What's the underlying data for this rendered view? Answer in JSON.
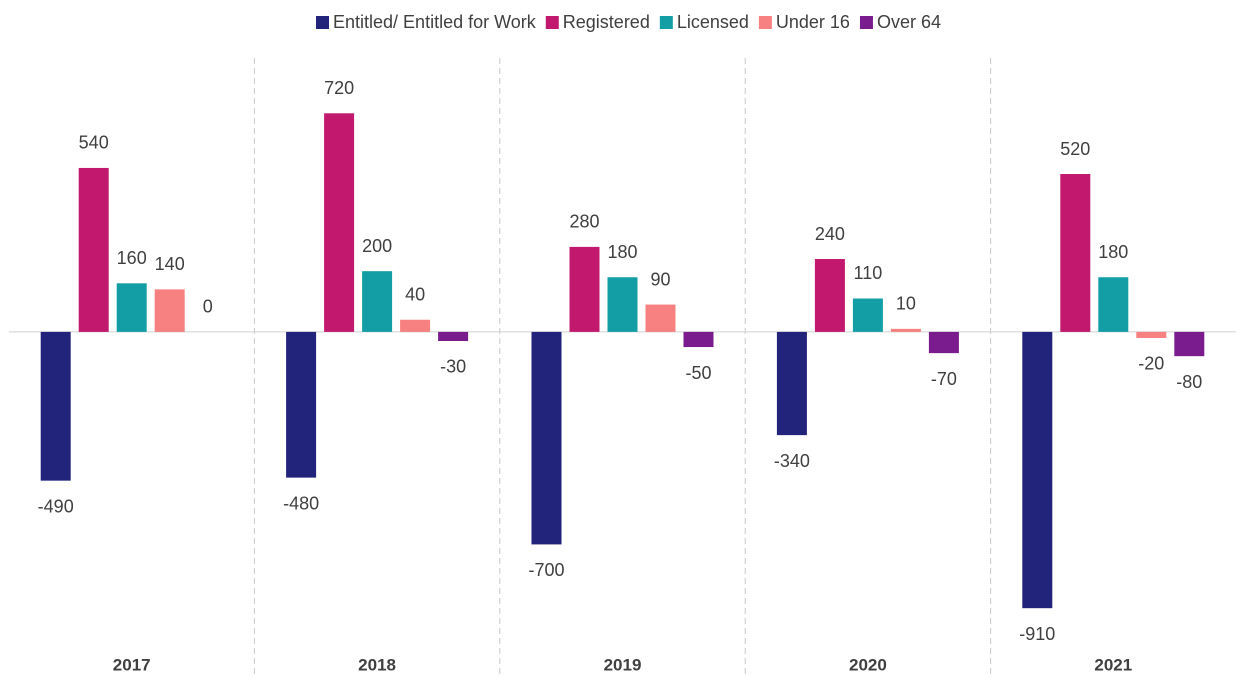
{
  "chart_data": {
    "type": "bar",
    "categories": [
      "2017",
      "2018",
      "2019",
      "2020",
      "2021"
    ],
    "series": [
      {
        "name": "Entitled/ Entitled for Work",
        "color": "#22237a",
        "values": [
          -490,
          -480,
          -700,
          -340,
          -910
        ]
      },
      {
        "name": "Registered",
        "color": "#c2186e",
        "values": [
          540,
          720,
          280,
          240,
          520
        ]
      },
      {
        "name": "Licensed",
        "color": "#139ea5",
        "values": [
          160,
          200,
          180,
          110,
          180
        ]
      },
      {
        "name": "Under 16",
        "color": "#f78080",
        "values": [
          140,
          40,
          90,
          10,
          -20
        ]
      },
      {
        "name": "Over 64",
        "color": "#7b1c8e",
        "values": [
          0,
          -30,
          -50,
          -70,
          -80
        ]
      }
    ],
    "ylim": [
      -1000,
      800
    ],
    "legend": "top"
  }
}
